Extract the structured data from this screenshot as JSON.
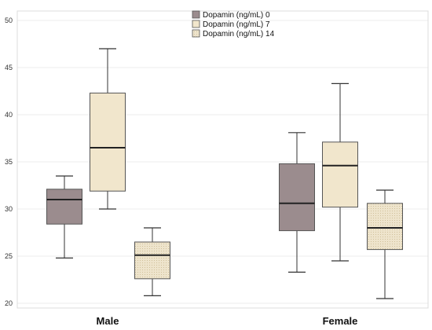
{
  "chart_data": {
    "type": "box",
    "categories": [
      "Male",
      "Female"
    ],
    "ylim": [
      19.5,
      51
    ],
    "yticks": [
      20,
      25,
      30,
      35,
      40,
      45,
      50
    ],
    "grid": true,
    "legend_position": "top-center",
    "series": [
      {
        "name": "Dopamin (ng/mL) 0",
        "color": "#9b8c8e",
        "boxes": [
          {
            "min": 24.8,
            "q1": 28.4,
            "median": 31.0,
            "q3": 32.1,
            "max": 33.5
          },
          {
            "min": 23.3,
            "q1": 27.7,
            "median": 30.6,
            "q3": 34.8,
            "max": 38.1
          }
        ]
      },
      {
        "name": "Dopamin (ng/mL) 7",
        "color": "#f1e6cc",
        "boxes": [
          {
            "min": 30.0,
            "q1": 31.9,
            "median": 36.5,
            "q3": 42.3,
            "max": 47.0
          },
          {
            "min": 24.5,
            "q1": 30.2,
            "median": 34.6,
            "q3": 37.1,
            "max": 43.3
          }
        ]
      },
      {
        "name": "Dopamin (ng/mL) 14",
        "color": "#eee4cc",
        "boxes": [
          {
            "min": 20.8,
            "q1": 22.6,
            "median": 25.1,
            "q3": 26.5,
            "max": 28.0
          },
          {
            "min": 20.5,
            "q1": 25.7,
            "median": 28.0,
            "q3": 30.6,
            "max": 32.0
          }
        ]
      }
    ]
  }
}
